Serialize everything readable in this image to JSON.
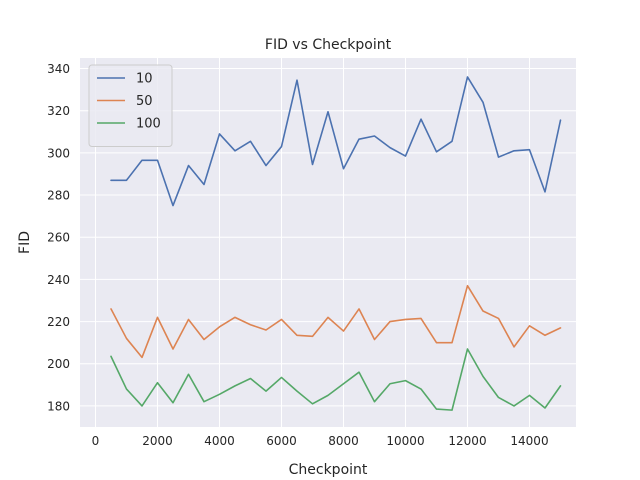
{
  "chart_data": {
    "type": "line",
    "title": "FID vs Checkpoint",
    "xlabel": "Checkpoint",
    "ylabel": "FID",
    "xlim": [
      -500,
      15500
    ],
    "ylim": [
      170,
      345
    ],
    "xticks": [
      0,
      2000,
      4000,
      6000,
      8000,
      10000,
      12000,
      14000
    ],
    "yticks": [
      180,
      200,
      220,
      240,
      260,
      280,
      300,
      320,
      340
    ],
    "grid": true,
    "legend_position": "top-left",
    "x": [
      500,
      1000,
      1500,
      2000,
      2500,
      3000,
      3500,
      4000,
      4500,
      5000,
      5500,
      6000,
      6500,
      7000,
      7500,
      8000,
      8500,
      9000,
      9500,
      10000,
      10500,
      11000,
      11500,
      12000,
      12500,
      13000,
      13500,
      14000,
      14500,
      15000
    ],
    "series": [
      {
        "name": "10",
        "color": "#4c72b0",
        "values": [
          287,
          287,
          296.5,
          296.5,
          275,
          294,
          285,
          309,
          301,
          305.5,
          294,
          303,
          334.5,
          294.5,
          319.5,
          292.5,
          306.5,
          308,
          302.5,
          298.5,
          316,
          300.5,
          305.5,
          336,
          324,
          298,
          301,
          301.5,
          281.5,
          315.5
        ]
      },
      {
        "name": "50",
        "color": "#dd8452",
        "values": [
          226,
          212,
          203,
          222,
          207,
          221,
          211.5,
          217.5,
          222,
          218.5,
          216,
          221,
          213.5,
          213,
          222,
          215.5,
          226,
          211.5,
          220,
          221,
          221.5,
          210,
          210,
          237,
          225,
          221.5,
          208,
          218,
          213.5,
          217
        ]
      },
      {
        "name": "100",
        "color": "#55a868",
        "values": [
          203.5,
          188,
          180,
          191,
          181.5,
          195,
          182,
          185.5,
          189.5,
          193,
          187,
          193.5,
          187,
          181,
          185,
          190.5,
          196,
          182,
          190.5,
          192,
          188,
          178.5,
          178,
          207,
          194,
          184,
          180,
          185,
          179,
          189.5
        ]
      }
    ]
  }
}
